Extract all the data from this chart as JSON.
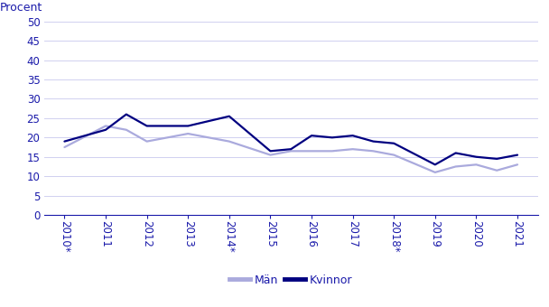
{
  "x_positions": [
    0,
    1,
    1.5,
    2,
    3,
    4,
    5,
    5.5,
    6,
    6.5,
    7,
    7.5,
    8,
    9,
    9.5,
    10,
    10.5,
    11
  ],
  "man_values": [
    17.5,
    23,
    22,
    19,
    21,
    19,
    15.5,
    16.5,
    16.5,
    16.5,
    17,
    16.5,
    15.5,
    11,
    12.5,
    13,
    11.5,
    13
  ],
  "kvinnor_values": [
    19,
    22,
    26,
    23,
    23,
    25.5,
    16.5,
    17,
    20.5,
    20,
    20.5,
    19,
    18.5,
    13,
    16,
    15,
    14.5,
    15.5
  ],
  "tick_labels": [
    "2010*",
    "2011",
    "2012",
    "2013",
    "2014*",
    "2015",
    "2016",
    "2017",
    "2018*",
    "2019",
    "2020",
    "2021"
  ],
  "tick_positions": [
    0,
    1,
    2,
    3,
    4,
    5,
    6,
    7,
    8,
    9,
    10,
    11
  ],
  "ylabel": "Procent",
  "ylim": [
    0,
    50
  ],
  "yticks": [
    0,
    5,
    10,
    15,
    20,
    25,
    30,
    35,
    40,
    45,
    50
  ],
  "man_color": "#aaaadd",
  "kvinnor_color": "#000080",
  "line_width": 1.6,
  "legend_labels": [
    "Män",
    "Kvinnor"
  ],
  "bg_color": "#ffffff",
  "grid_color": "#d0d0f0",
  "text_color": "#1a1aaa",
  "axis_color": "#1a1aaa",
  "font_size": 8.5
}
